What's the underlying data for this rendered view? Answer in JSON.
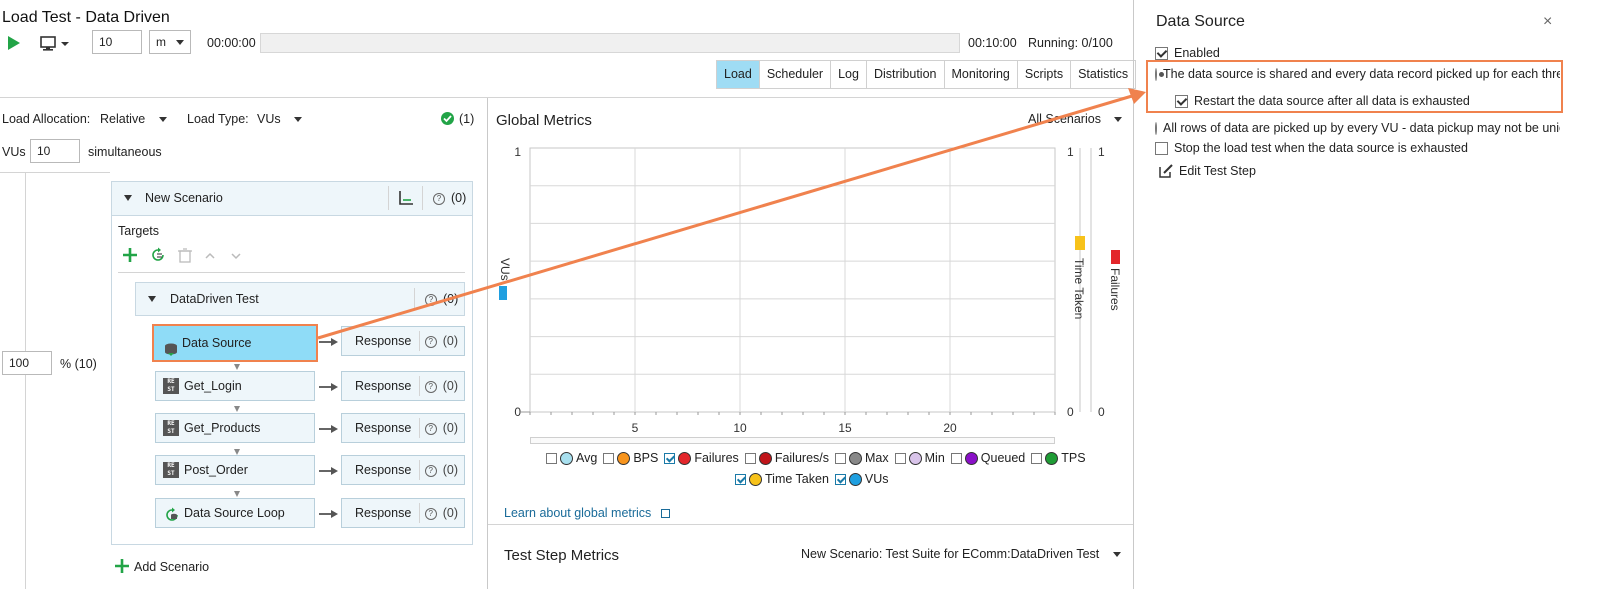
{
  "window": {
    "title": "Load Test - Data Driven"
  },
  "toolbar": {
    "duration_value": "10",
    "duration_unit": "m",
    "elapsed": "00:00:00",
    "total": "00:10:00",
    "running": "Running: 0/100"
  },
  "tabs": [
    {
      "label": "Load",
      "active": true
    },
    {
      "label": "Scheduler",
      "active": false
    },
    {
      "label": "Log",
      "active": false
    },
    {
      "label": "Distribution",
      "active": false
    },
    {
      "label": "Monitoring",
      "active": false
    },
    {
      "label": "Scripts",
      "active": false
    },
    {
      "label": "Statistics",
      "active": false
    }
  ],
  "load": {
    "allocation_label": "Load Allocation:",
    "allocation_value": "Relative",
    "type_label": "Load Type:",
    "type_value": "VUs",
    "status_count": "(1)",
    "vus_label": "VUs",
    "vus_value": "10",
    "vus_suffix": "simultaneous",
    "percent_value": "100",
    "percent_suffix": "% (10)"
  },
  "scenario": {
    "name": "New Scenario",
    "count": "(0)",
    "targets_label": "Targets",
    "test_name": "DataDriven Test",
    "test_count": "(0)",
    "steps": [
      {
        "name": "Data Source",
        "response": "Response",
        "count": "(0)",
        "icon": "datasource-icon"
      },
      {
        "name": "Get_Login",
        "response": "Response",
        "count": "(0)",
        "icon": "rest-icon"
      },
      {
        "name": "Get_Products",
        "response": "Response",
        "count": "(0)",
        "icon": "rest-icon"
      },
      {
        "name": "Post_Order",
        "response": "Response",
        "count": "(0)",
        "icon": "rest-icon"
      },
      {
        "name": "Data Source Loop",
        "response": "Response",
        "count": "(0)",
        "icon": "loop-icon"
      }
    ],
    "add_label": "Add Scenario"
  },
  "metrics": {
    "title": "Global Metrics",
    "filter": "All Scenarios",
    "learn_link": "Learn about global metrics",
    "test_step_title": "Test Step Metrics",
    "test_step_filter": "New Scenario: Test Suite for EComm:DataDriven Test",
    "legend": [
      {
        "label": "Avg",
        "checked": false,
        "color": "#a8e0ef"
      },
      {
        "label": "BPS",
        "checked": false,
        "color": "#f7941d"
      },
      {
        "label": "Failures",
        "checked": true,
        "color": "#e3262b"
      },
      {
        "label": "Failures/s",
        "checked": false,
        "color": "#c0141a"
      },
      {
        "label": "Max",
        "checked": false,
        "color": "#888888"
      },
      {
        "label": "Min",
        "checked": false,
        "color": "#d9c4ea"
      },
      {
        "label": "Queued",
        "checked": false,
        "color": "#8a10c8"
      },
      {
        "label": "TPS",
        "checked": false,
        "color": "#1f9c35"
      },
      {
        "label": "Time Taken",
        "checked": true,
        "color": "#f7c21a"
      },
      {
        "label": "VUs",
        "checked": true,
        "color": "#1f9fe0"
      }
    ]
  },
  "chart_data": {
    "type": "line",
    "x_ticks": [
      "5",
      "10",
      "15",
      "20"
    ],
    "xlim": [
      0,
      25
    ],
    "ylim": [
      0,
      1
    ],
    "y_left_ticks": [
      "1",
      "0"
    ],
    "y_right1_ticks": [
      "1",
      "0"
    ],
    "y_right2_ticks": [
      "1",
      "0"
    ],
    "axis_labels": {
      "left": "VUs",
      "right1": "Time Taken",
      "right2": "Failures"
    },
    "grid": true,
    "series": []
  },
  "datasource": {
    "title": "Data Source",
    "close": "×",
    "enabled_label": "Enabled",
    "enabled": true,
    "shared_label": "The data source is shared and every data record picked up for each threa",
    "restart_label": "Restart the data source after all data is exhausted",
    "restart_checked": true,
    "allrows_label": "All rows of data are picked up by every VU - data pickup may not be unic",
    "stop_label": "Stop the load test when the data source is exhausted",
    "stop_checked": false,
    "edit_label": "Edit Test Step"
  },
  "colors": {
    "accent": "#f0824e",
    "tab_active": "#9fdcf4",
    "play": "#22a447"
  }
}
